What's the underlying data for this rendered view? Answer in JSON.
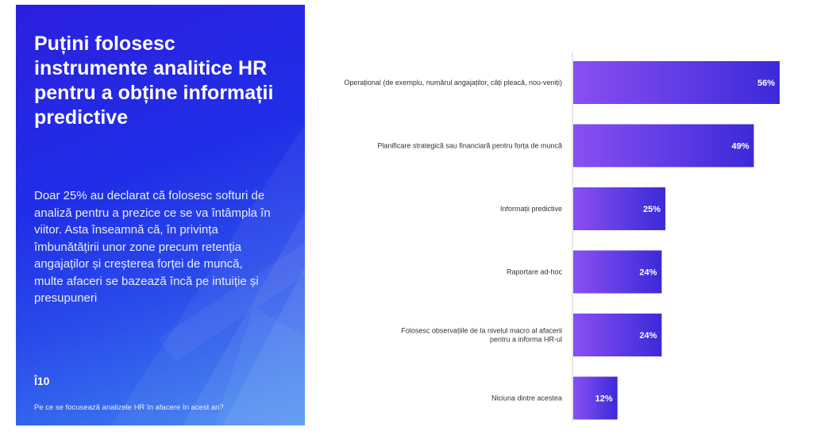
{
  "panel": {
    "title": "Puțini folosesc instrumente analitice HR pentru a obține informații predictive",
    "body": "Doar 25% au declarat că folosesc softuri de analiză pentru a prezice ce se va întâmpla în viitor. Asta înseamnă că, în privința îmbunătățirii unor zone precum retenția angajaților și creșterea forței de muncă, multe afaceri se bazează încă pe intuiție și presupuneri",
    "number": "Î10",
    "question": "Pe ce se focusează analizele HR în afacere în acest an?"
  },
  "colors": {
    "panel_gradient_start": "#2d1fe0",
    "panel_gradient_end": "#3f86f0",
    "bar_gradient_start": "#8a4ff2",
    "bar_gradient_end": "#3b2ad8"
  },
  "chart_data": {
    "type": "bar",
    "orientation": "horizontal",
    "categories": [
      [
        "Operațional (de exemplu, numărul angajaților, câți pleacă, nou-veniți)"
      ],
      [
        "Planificare strategică sau financiară pentru forța de muncă"
      ],
      [
        "Informații predictive"
      ],
      [
        "Raportare ad-hoc"
      ],
      [
        "Folosesc observațiile de la nivelul macro al afacerii",
        "pentru a informa HR-ul"
      ],
      [
        "Niciuna dintre acestea"
      ]
    ],
    "values": [
      56,
      49,
      25,
      24,
      24,
      12
    ],
    "value_labels": [
      "56%",
      "49%",
      "25%",
      "24%",
      "24%",
      "12%"
    ],
    "xlim": [
      0,
      56
    ],
    "grid": false,
    "legend": "none"
  }
}
